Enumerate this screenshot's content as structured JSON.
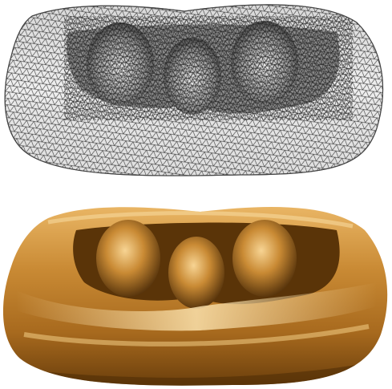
{
  "figure": {
    "panels": [
      {
        "rendering": "wireframe-mesh"
      },
      {
        "rendering": "smooth-shaded"
      }
    ],
    "colors": {
      "background": "#ffffff",
      "mesh_fill_light": "#f4f4f4",
      "mesh_fill_mid": "#c8c8c8",
      "mesh_fill_dark": "#3a3a3a",
      "mesh_line": "#1e1e1e",
      "gold_light": "#f7d493",
      "gold_mid": "#c98a34",
      "gold_dark": "#4a2a07"
    }
  }
}
